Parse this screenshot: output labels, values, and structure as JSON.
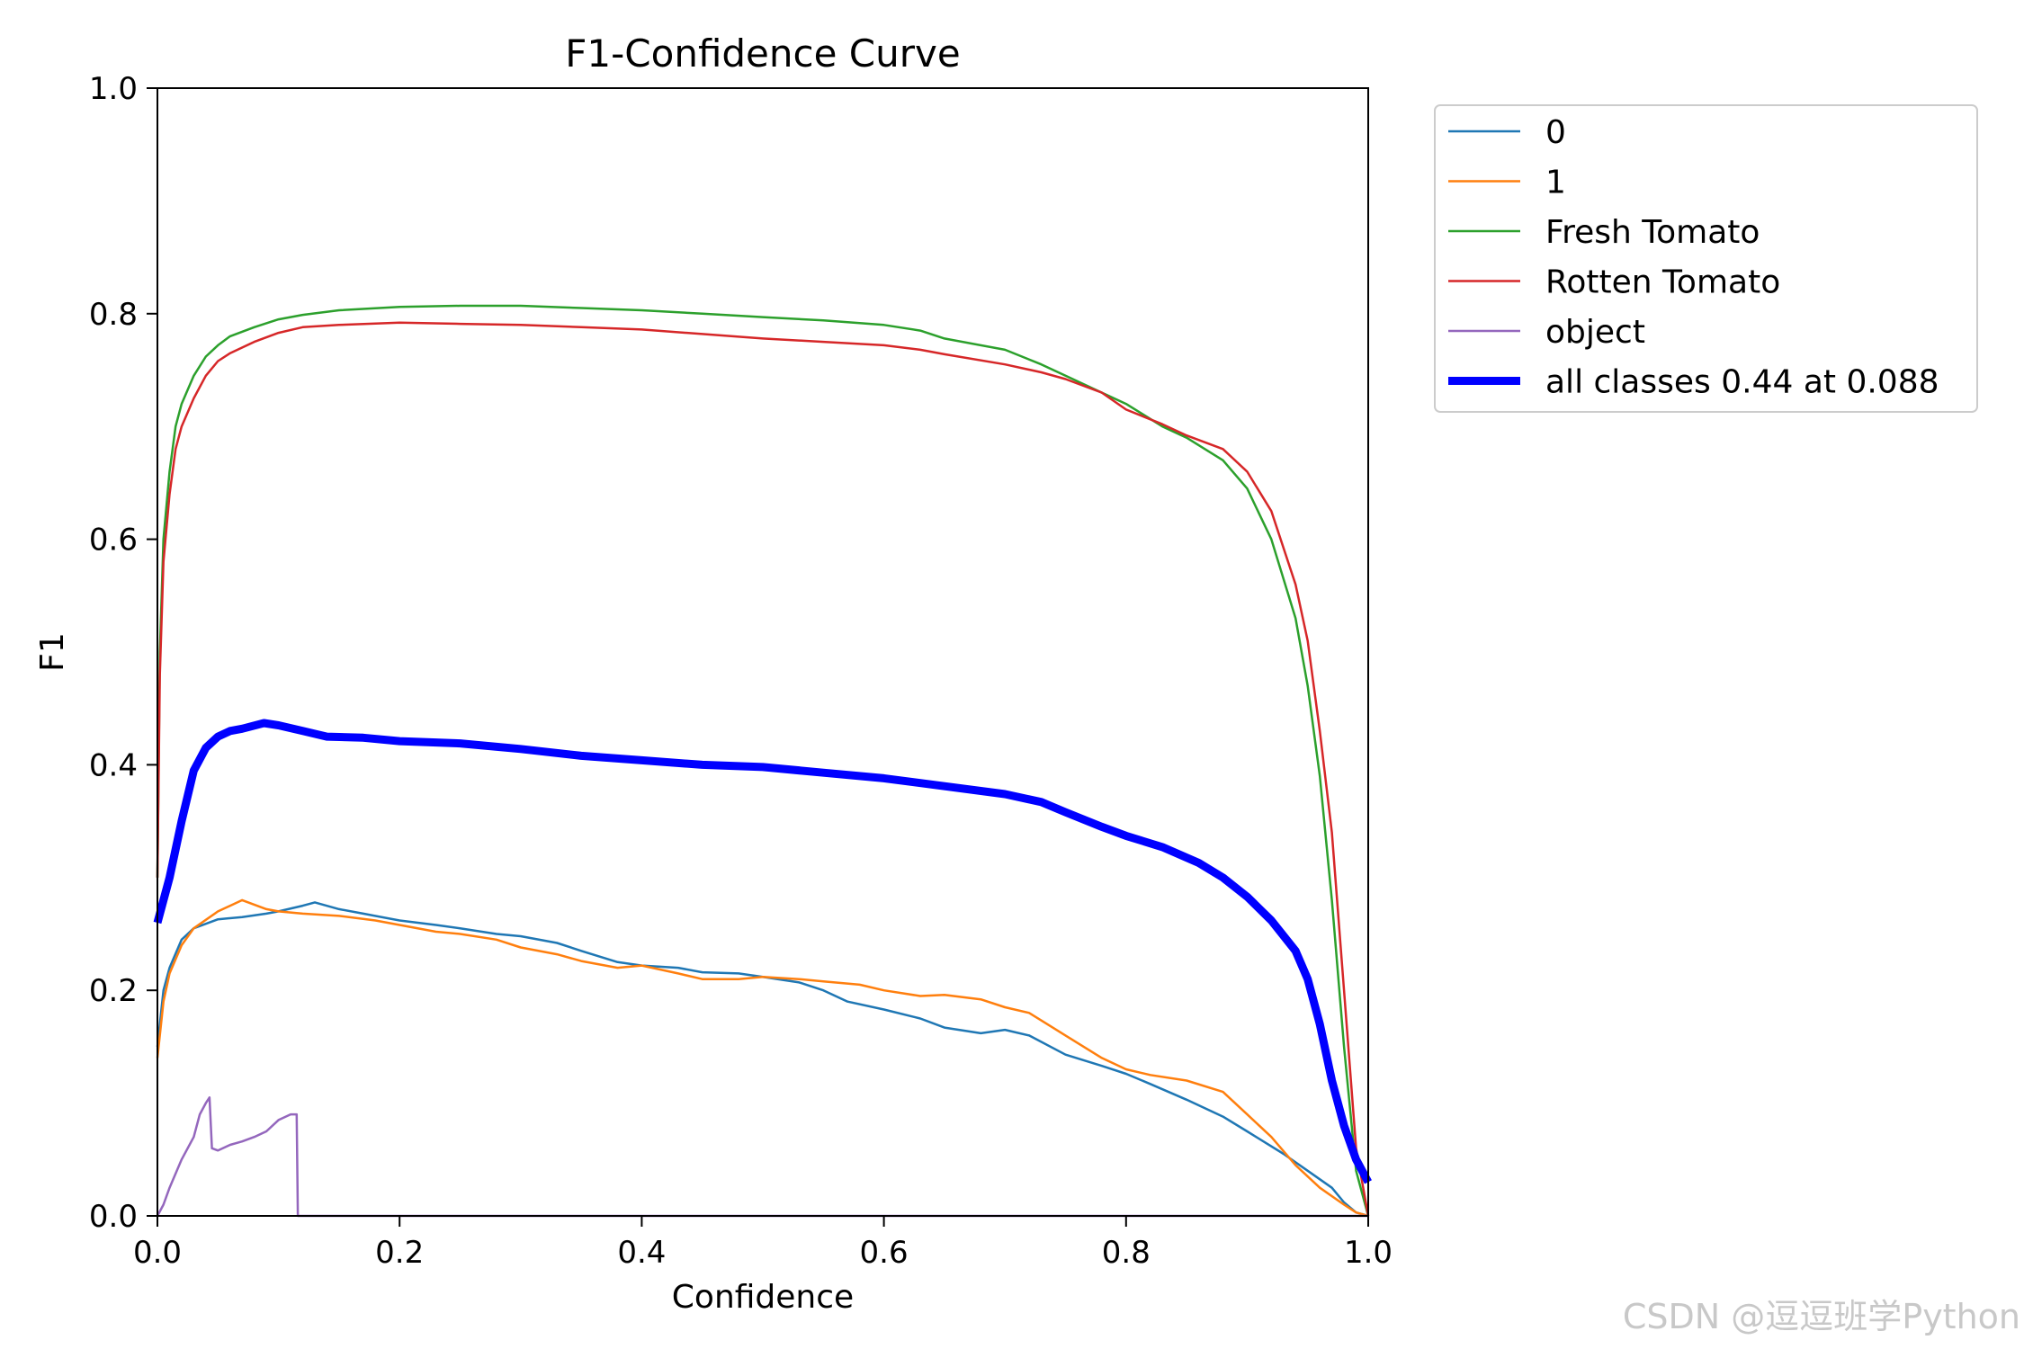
{
  "chart_data": {
    "type": "line",
    "title": "F1-Confidence Curve",
    "xlabel": "Confidence",
    "ylabel": "F1",
    "xlim": [
      0,
      1
    ],
    "ylim": [
      0,
      1
    ],
    "x_ticks": [
      "0.0",
      "0.2",
      "0.4",
      "0.6",
      "0.8",
      "1.0"
    ],
    "y_ticks": [
      "0.0",
      "0.2",
      "0.4",
      "0.6",
      "0.8",
      "1.0"
    ],
    "grid": false,
    "legend": "outside-top-right",
    "series": [
      {
        "name": "0",
        "color": "#1f77b4",
        "width": "thin",
        "points": [
          [
            0,
            0.15
          ],
          [
            0.005,
            0.2
          ],
          [
            0.01,
            0.22
          ],
          [
            0.02,
            0.245
          ],
          [
            0.03,
            0.255
          ],
          [
            0.05,
            0.263
          ],
          [
            0.07,
            0.265
          ],
          [
            0.09,
            0.268
          ],
          [
            0.1,
            0.27
          ],
          [
            0.12,
            0.275
          ],
          [
            0.13,
            0.278
          ],
          [
            0.15,
            0.272
          ],
          [
            0.17,
            0.268
          ],
          [
            0.2,
            0.262
          ],
          [
            0.23,
            0.258
          ],
          [
            0.25,
            0.255
          ],
          [
            0.28,
            0.25
          ],
          [
            0.3,
            0.248
          ],
          [
            0.33,
            0.242
          ],
          [
            0.35,
            0.235
          ],
          [
            0.38,
            0.225
          ],
          [
            0.4,
            0.222
          ],
          [
            0.43,
            0.22
          ],
          [
            0.45,
            0.216
          ],
          [
            0.48,
            0.215
          ],
          [
            0.5,
            0.212
          ],
          [
            0.53,
            0.207
          ],
          [
            0.55,
            0.2
          ],
          [
            0.57,
            0.19
          ],
          [
            0.6,
            0.183
          ],
          [
            0.63,
            0.175
          ],
          [
            0.65,
            0.167
          ],
          [
            0.68,
            0.162
          ],
          [
            0.7,
            0.165
          ],
          [
            0.72,
            0.16
          ],
          [
            0.75,
            0.143
          ],
          [
            0.78,
            0.133
          ],
          [
            0.8,
            0.126
          ],
          [
            0.82,
            0.117
          ],
          [
            0.85,
            0.103
          ],
          [
            0.88,
            0.088
          ],
          [
            0.9,
            0.075
          ],
          [
            0.93,
            0.055
          ],
          [
            0.95,
            0.04
          ],
          [
            0.97,
            0.025
          ],
          [
            0.98,
            0.012
          ],
          [
            0.99,
            0.003
          ],
          [
            1.0,
            0.0
          ]
        ]
      },
      {
        "name": "1",
        "color": "#ff7f0e",
        "width": "thin",
        "points": [
          [
            0,
            0.14
          ],
          [
            0.005,
            0.19
          ],
          [
            0.01,
            0.215
          ],
          [
            0.02,
            0.24
          ],
          [
            0.03,
            0.255
          ],
          [
            0.05,
            0.27
          ],
          [
            0.07,
            0.28
          ],
          [
            0.09,
            0.272
          ],
          [
            0.1,
            0.27
          ],
          [
            0.12,
            0.268
          ],
          [
            0.15,
            0.266
          ],
          [
            0.18,
            0.262
          ],
          [
            0.2,
            0.258
          ],
          [
            0.23,
            0.252
          ],
          [
            0.25,
            0.25
          ],
          [
            0.28,
            0.245
          ],
          [
            0.3,
            0.238
          ],
          [
            0.33,
            0.232
          ],
          [
            0.35,
            0.226
          ],
          [
            0.38,
            0.22
          ],
          [
            0.4,
            0.222
          ],
          [
            0.43,
            0.215
          ],
          [
            0.45,
            0.21
          ],
          [
            0.48,
            0.21
          ],
          [
            0.5,
            0.212
          ],
          [
            0.53,
            0.21
          ],
          [
            0.55,
            0.208
          ],
          [
            0.58,
            0.205
          ],
          [
            0.6,
            0.2
          ],
          [
            0.63,
            0.195
          ],
          [
            0.65,
            0.196
          ],
          [
            0.68,
            0.192
          ],
          [
            0.7,
            0.185
          ],
          [
            0.72,
            0.18
          ],
          [
            0.75,
            0.16
          ],
          [
            0.78,
            0.14
          ],
          [
            0.8,
            0.13
          ],
          [
            0.82,
            0.125
          ],
          [
            0.85,
            0.12
          ],
          [
            0.88,
            0.11
          ],
          [
            0.9,
            0.09
          ],
          [
            0.92,
            0.07
          ],
          [
            0.94,
            0.045
          ],
          [
            0.96,
            0.025
          ],
          [
            0.98,
            0.01
          ],
          [
            0.99,
            0.003
          ],
          [
            1.0,
            0.0
          ]
        ]
      },
      {
        "name": "Fresh Tomato",
        "color": "#2ca02c",
        "width": "thin",
        "points": [
          [
            0,
            0.3
          ],
          [
            0.002,
            0.5
          ],
          [
            0.005,
            0.6
          ],
          [
            0.01,
            0.66
          ],
          [
            0.015,
            0.7
          ],
          [
            0.02,
            0.72
          ],
          [
            0.03,
            0.745
          ],
          [
            0.04,
            0.762
          ],
          [
            0.05,
            0.772
          ],
          [
            0.06,
            0.78
          ],
          [
            0.08,
            0.788
          ],
          [
            0.1,
            0.795
          ],
          [
            0.12,
            0.799
          ],
          [
            0.15,
            0.803
          ],
          [
            0.2,
            0.806
          ],
          [
            0.25,
            0.807
          ],
          [
            0.3,
            0.807
          ],
          [
            0.35,
            0.805
          ],
          [
            0.4,
            0.803
          ],
          [
            0.45,
            0.8
          ],
          [
            0.5,
            0.797
          ],
          [
            0.55,
            0.794
          ],
          [
            0.6,
            0.79
          ],
          [
            0.63,
            0.785
          ],
          [
            0.65,
            0.778
          ],
          [
            0.7,
            0.768
          ],
          [
            0.73,
            0.755
          ],
          [
            0.75,
            0.745
          ],
          [
            0.78,
            0.73
          ],
          [
            0.8,
            0.72
          ],
          [
            0.83,
            0.7
          ],
          [
            0.85,
            0.69
          ],
          [
            0.88,
            0.67
          ],
          [
            0.9,
            0.645
          ],
          [
            0.92,
            0.6
          ],
          [
            0.94,
            0.53
          ],
          [
            0.95,
            0.47
          ],
          [
            0.96,
            0.39
          ],
          [
            0.97,
            0.28
          ],
          [
            0.98,
            0.15
          ],
          [
            0.99,
            0.04
          ],
          [
            1.0,
            0.0
          ]
        ]
      },
      {
        "name": "Rotten Tomato",
        "color": "#d62728",
        "width": "thin",
        "points": [
          [
            0,
            0.3
          ],
          [
            0.002,
            0.48
          ],
          [
            0.005,
            0.58
          ],
          [
            0.01,
            0.64
          ],
          [
            0.015,
            0.68
          ],
          [
            0.02,
            0.7
          ],
          [
            0.03,
            0.725
          ],
          [
            0.04,
            0.745
          ],
          [
            0.05,
            0.758
          ],
          [
            0.06,
            0.765
          ],
          [
            0.08,
            0.775
          ],
          [
            0.1,
            0.783
          ],
          [
            0.12,
            0.788
          ],
          [
            0.15,
            0.79
          ],
          [
            0.2,
            0.792
          ],
          [
            0.25,
            0.791
          ],
          [
            0.3,
            0.79
          ],
          [
            0.35,
            0.788
          ],
          [
            0.4,
            0.786
          ],
          [
            0.45,
            0.782
          ],
          [
            0.5,
            0.778
          ],
          [
            0.55,
            0.775
          ],
          [
            0.6,
            0.772
          ],
          [
            0.63,
            0.768
          ],
          [
            0.65,
            0.764
          ],
          [
            0.7,
            0.755
          ],
          [
            0.73,
            0.748
          ],
          [
            0.75,
            0.742
          ],
          [
            0.78,
            0.73
          ],
          [
            0.8,
            0.715
          ],
          [
            0.83,
            0.702
          ],
          [
            0.85,
            0.692
          ],
          [
            0.88,
            0.68
          ],
          [
            0.9,
            0.66
          ],
          [
            0.92,
            0.625
          ],
          [
            0.94,
            0.56
          ],
          [
            0.95,
            0.51
          ],
          [
            0.96,
            0.43
          ],
          [
            0.97,
            0.34
          ],
          [
            0.98,
            0.2
          ],
          [
            0.99,
            0.06
          ],
          [
            1.0,
            0.0
          ]
        ]
      },
      {
        "name": "object",
        "color": "#9467bd",
        "width": "thin",
        "points": [
          [
            0,
            0.0
          ],
          [
            0.005,
            0.01
          ],
          [
            0.01,
            0.025
          ],
          [
            0.02,
            0.05
          ],
          [
            0.03,
            0.07
          ],
          [
            0.035,
            0.09
          ],
          [
            0.04,
            0.1
          ],
          [
            0.043,
            0.105
          ],
          [
            0.045,
            0.06
          ],
          [
            0.05,
            0.058
          ],
          [
            0.06,
            0.063
          ],
          [
            0.07,
            0.066
          ],
          [
            0.08,
            0.07
          ],
          [
            0.09,
            0.075
          ],
          [
            0.1,
            0.085
          ],
          [
            0.11,
            0.09
          ],
          [
            0.115,
            0.09
          ],
          [
            0.116,
            0.0
          ],
          [
            0.2,
            0.0
          ],
          [
            0.4,
            0.0
          ],
          [
            0.6,
            0.0
          ],
          [
            0.8,
            0.0
          ],
          [
            1.0,
            0.0
          ]
        ]
      },
      {
        "name": "all classes 0.44 at 0.088",
        "color": "#0000ff",
        "width": "thick",
        "points": [
          [
            0,
            0.26
          ],
          [
            0.01,
            0.3
          ],
          [
            0.02,
            0.35
          ],
          [
            0.03,
            0.395
          ],
          [
            0.04,
            0.415
          ],
          [
            0.05,
            0.425
          ],
          [
            0.06,
            0.43
          ],
          [
            0.07,
            0.432
          ],
          [
            0.088,
            0.437
          ],
          [
            0.1,
            0.435
          ],
          [
            0.12,
            0.43
          ],
          [
            0.14,
            0.425
          ],
          [
            0.17,
            0.424
          ],
          [
            0.2,
            0.421
          ],
          [
            0.25,
            0.419
          ],
          [
            0.3,
            0.414
          ],
          [
            0.35,
            0.408
          ],
          [
            0.4,
            0.404
          ],
          [
            0.45,
            0.4
          ],
          [
            0.5,
            0.398
          ],
          [
            0.55,
            0.393
          ],
          [
            0.6,
            0.388
          ],
          [
            0.65,
            0.381
          ],
          [
            0.7,
            0.374
          ],
          [
            0.73,
            0.367
          ],
          [
            0.75,
            0.358
          ],
          [
            0.78,
            0.345
          ],
          [
            0.8,
            0.337
          ],
          [
            0.83,
            0.327
          ],
          [
            0.86,
            0.313
          ],
          [
            0.88,
            0.3
          ],
          [
            0.9,
            0.283
          ],
          [
            0.92,
            0.262
          ],
          [
            0.94,
            0.235
          ],
          [
            0.95,
            0.21
          ],
          [
            0.96,
            0.17
          ],
          [
            0.97,
            0.12
          ],
          [
            0.98,
            0.08
          ],
          [
            0.99,
            0.05
          ],
          [
            1.0,
            0.03
          ]
        ]
      }
    ]
  },
  "watermark": "CSDN @逗逗班学Python"
}
